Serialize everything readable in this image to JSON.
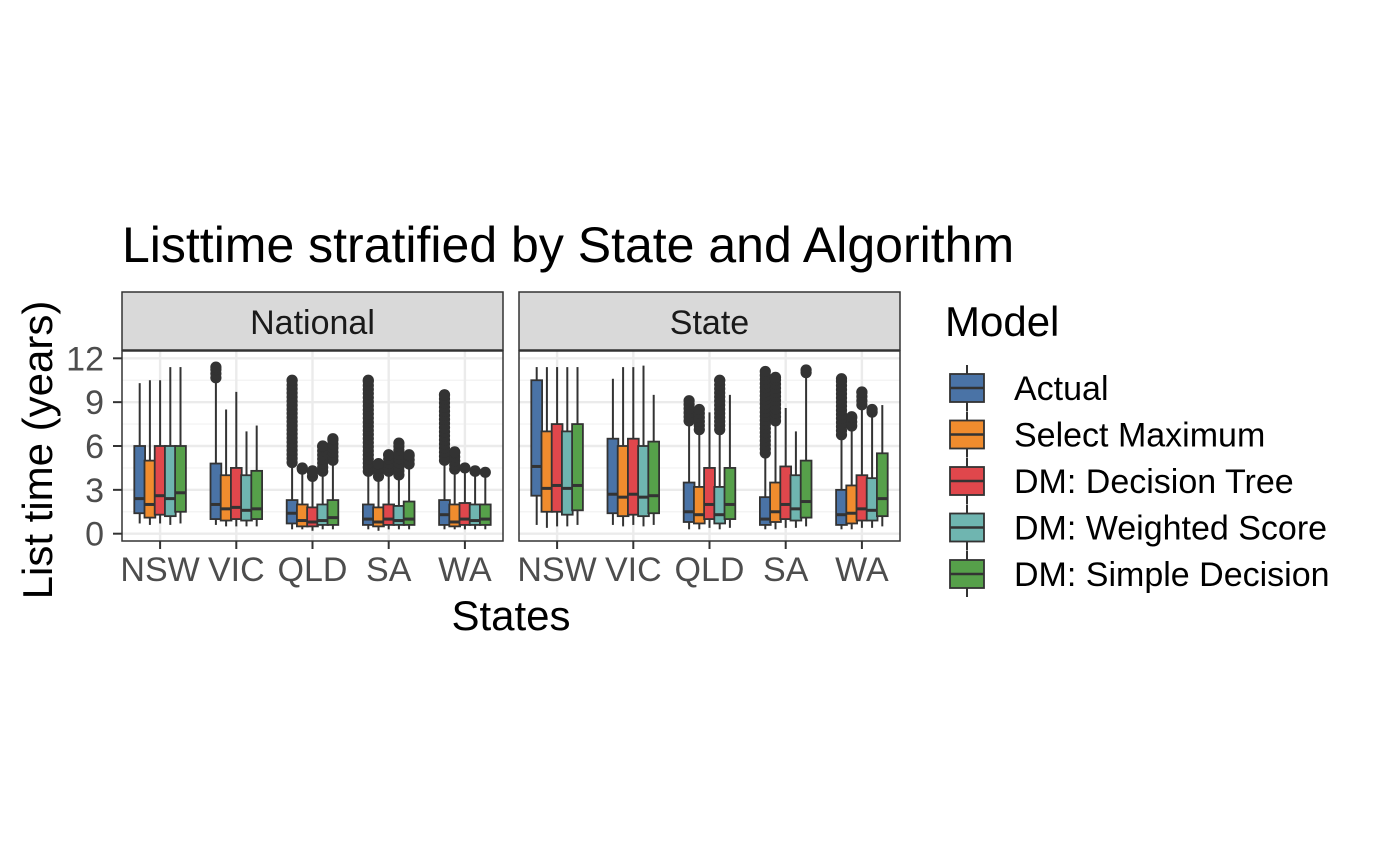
{
  "chart_data": {
    "type": "boxplot",
    "title": "Listtime stratified by State and Algorithm",
    "xlabel": "States",
    "ylabel": "List time (years)",
    "ylim": [
      -0.5,
      12.5
    ],
    "y_ticks": [
      0,
      3,
      6,
      9,
      12
    ],
    "grid": true,
    "legend": {
      "title": "Model",
      "placement": "right"
    },
    "categories": [
      "NSW",
      "VIC",
      "QLD",
      "SA",
      "WA"
    ],
    "facets": [
      "National",
      "State"
    ],
    "series": [
      {
        "name": "Actual",
        "color": "#4A73A6"
      },
      {
        "name": "Select Maximum",
        "color": "#F08C2E"
      },
      {
        "name": "DM: Decision Tree",
        "color": "#E0474C"
      },
      {
        "name": "DM: Weighted Score",
        "color": "#6FB5B0"
      },
      {
        "name": "DM: Simple Decision",
        "color": "#56A04A"
      }
    ],
    "boxes": {
      "National": [
        [
          [
            0.7,
            1.4,
            2.4,
            6.0,
            10.3
          ],
          [
            0.6,
            1.1,
            2.0,
            5.0,
            10.5
          ],
          [
            0.7,
            1.3,
            2.6,
            6.0,
            10.5
          ],
          [
            0.6,
            1.2,
            2.4,
            6.0,
            11.4
          ],
          [
            0.7,
            1.5,
            2.8,
            6.0,
            11.4
          ]
        ],
        [
          [
            0.6,
            1.0,
            2.0,
            4.8,
            11.4
          ],
          [
            0.5,
            0.9,
            1.7,
            4.0,
            8.5
          ],
          [
            0.5,
            1.0,
            1.8,
            4.5,
            9.7
          ],
          [
            0.5,
            0.9,
            1.6,
            4.0,
            7.0
          ],
          [
            0.5,
            1.0,
            1.7,
            4.3,
            7.4
          ]
        ],
        [
          [
            0.3,
            0.7,
            1.4,
            2.3,
            10.5
          ],
          [
            0.3,
            0.5,
            0.9,
            2.0,
            4.5
          ],
          [
            0.2,
            0.5,
            0.8,
            1.8,
            4.3
          ],
          [
            0.3,
            0.6,
            0.9,
            2.0,
            6.0
          ],
          [
            0.3,
            0.6,
            1.1,
            2.3,
            6.5
          ]
        ],
        [
          [
            0.3,
            0.6,
            1.0,
            2.0,
            10.5
          ],
          [
            0.2,
            0.5,
            0.8,
            1.8,
            4.8
          ],
          [
            0.3,
            0.6,
            1.0,
            2.0,
            5.4
          ],
          [
            0.3,
            0.6,
            0.9,
            1.9,
            6.2
          ],
          [
            0.3,
            0.6,
            1.0,
            2.2,
            5.4
          ]
        ],
        [
          [
            0.3,
            0.6,
            1.3,
            2.3,
            9.5
          ],
          [
            0.3,
            0.5,
            0.8,
            2.0,
            5.6
          ],
          [
            0.3,
            0.6,
            1.0,
            2.1,
            4.5
          ],
          [
            0.3,
            0.6,
            0.9,
            2.0,
            4.3
          ],
          [
            0.3,
            0.6,
            1.0,
            2.0,
            4.2
          ]
        ]
      ],
      "State": [
        [
          [
            0.6,
            2.6,
            4.6,
            10.5,
            11.4
          ],
          [
            0.4,
            1.5,
            3.1,
            7.0,
            11.4
          ],
          [
            0.5,
            1.5,
            3.3,
            7.5,
            11.4
          ],
          [
            0.5,
            1.3,
            3.1,
            7.0,
            11.4
          ],
          [
            0.6,
            1.6,
            3.3,
            7.5,
            11.4
          ]
        ],
        [
          [
            0.6,
            1.4,
            2.7,
            6.5,
            10.6
          ],
          [
            0.5,
            1.2,
            2.5,
            6.0,
            11.4
          ],
          [
            0.6,
            1.3,
            2.7,
            6.5,
            11.4
          ],
          [
            0.5,
            1.2,
            2.5,
            6.0,
            11.5
          ],
          [
            0.6,
            1.4,
            2.6,
            6.3,
            9.5
          ]
        ],
        [
          [
            0.3,
            0.8,
            1.5,
            3.5,
            9.1
          ],
          [
            0.3,
            0.7,
            1.3,
            3.2,
            8.5
          ],
          [
            0.4,
            1.0,
            2.0,
            4.5,
            8.3
          ],
          [
            0.3,
            0.7,
            1.3,
            3.2,
            10.5
          ],
          [
            0.4,
            1.0,
            2.0,
            4.5,
            9.5
          ]
        ],
        [
          [
            0.3,
            0.6,
            1.0,
            2.5,
            11.1
          ],
          [
            0.3,
            0.8,
            1.5,
            3.5,
            10.7
          ],
          [
            0.4,
            1.0,
            2.0,
            4.6,
            8.6
          ],
          [
            0.4,
            0.9,
            1.7,
            4.0,
            7.0
          ],
          [
            0.5,
            1.1,
            2.2,
            5.0,
            11.2
          ]
        ],
        [
          [
            0.3,
            0.6,
            1.3,
            3.0,
            10.6
          ],
          [
            0.3,
            0.7,
            1.4,
            3.3,
            8.0
          ],
          [
            0.4,
            0.9,
            1.7,
            4.0,
            9.7
          ],
          [
            0.4,
            0.9,
            1.6,
            3.8,
            8.5
          ],
          [
            0.5,
            1.2,
            2.4,
            5.5,
            8.8
          ]
        ]
      ]
    }
  }
}
